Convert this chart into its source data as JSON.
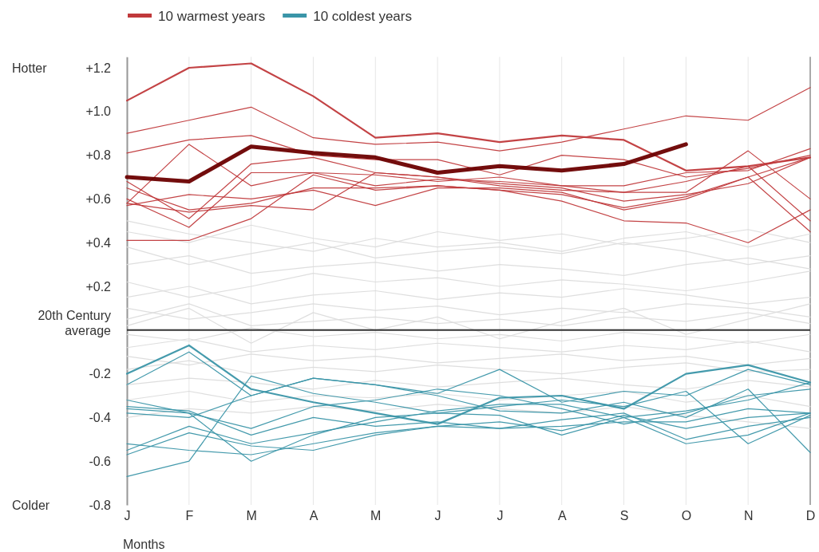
{
  "chart_data": {
    "type": "line",
    "xlabel": "Months",
    "categories": [
      "J",
      "F",
      "M",
      "A",
      "M",
      "J",
      "J",
      "A",
      "S",
      "O",
      "N",
      "D"
    ],
    "ylim": [
      -0.8,
      1.25
    ],
    "yticks": [
      {
        "value": 1.2,
        "label": "+1.2"
      },
      {
        "value": 1.0,
        "label": "+1.0"
      },
      {
        "value": 0.8,
        "label": "+0.8"
      },
      {
        "value": 0.6,
        "label": "+0.6"
      },
      {
        "value": 0.4,
        "label": "+0.4"
      },
      {
        "value": 0.2,
        "label": "+0.2"
      },
      {
        "value": 0,
        "label": null
      },
      -0.2,
      -0.4,
      -0.6,
      -0.8
    ],
    "grid": "x",
    "legend": "top",
    "marker": "none",
    "line_style": "solid",
    "annotations": [
      "Hotter",
      "Colder"
    ],
    "ref_lines": [
      {
        "axis": "y",
        "value": 0,
        "color": "#333333",
        "label": "20th Century average"
      }
    ],
    "series": [
      {
        "color": "#dcdcdc",
        "values": [
          0.45,
          0.4,
          0.48,
          0.42,
          0.38,
          0.45,
          0.41,
          0.44,
          0.39,
          0.42,
          0.46,
          0.4
        ]
      },
      {
        "color": "#dcdcdc",
        "values": [
          0.38,
          0.3,
          0.35,
          0.4,
          0.33,
          0.36,
          0.38,
          0.35,
          0.4,
          0.36,
          0.3,
          0.34
        ]
      },
      {
        "color": "#dcdcdc",
        "values": [
          0.3,
          0.34,
          0.26,
          0.29,
          0.31,
          0.27,
          0.3,
          0.28,
          0.25,
          0.3,
          0.33,
          0.28
        ]
      },
      {
        "color": "#dcdcdc",
        "values": [
          0.22,
          0.15,
          0.2,
          0.26,
          0.22,
          0.24,
          0.2,
          0.23,
          0.21,
          0.18,
          0.22,
          0.27
        ]
      },
      {
        "color": "#dcdcdc",
        "values": [
          0.15,
          0.2,
          0.12,
          0.16,
          0.18,
          0.14,
          0.17,
          0.15,
          0.19,
          0.16,
          0.12,
          0.15
        ]
      },
      {
        "color": "#dcdcdc",
        "values": [
          0.1,
          0.05,
          0.08,
          0.12,
          0.09,
          0.11,
          0.07,
          0.1,
          0.08,
          0.12,
          0.1,
          0.06
        ]
      },
      {
        "color": "#dcdcdc",
        "values": [
          0.05,
          0.12,
          0.02,
          0.04,
          0.06,
          0.03,
          0.05,
          0.02,
          0.06,
          0.04,
          0.08,
          0.03
        ]
      },
      {
        "color": "#dcdcdc",
        "values": [
          -0.02,
          -0.05,
          0.01,
          -0.03,
          -0.01,
          -0.04,
          -0.02,
          -0.05,
          -0.01,
          -0.03,
          -0.06,
          -0.02
        ]
      },
      {
        "color": "#dcdcdc",
        "values": [
          -0.08,
          -0.04,
          -0.1,
          -0.07,
          -0.09,
          -0.06,
          -0.08,
          -0.1,
          -0.07,
          -0.09,
          -0.05,
          -0.1
        ]
      },
      {
        "color": "#dcdcdc",
        "values": [
          -0.12,
          -0.16,
          -0.11,
          -0.14,
          -0.12,
          -0.15,
          -0.13,
          -0.11,
          -0.14,
          -0.12,
          -0.16,
          -0.13
        ]
      },
      {
        "color": "#dcdcdc",
        "values": [
          -0.18,
          -0.14,
          -0.2,
          -0.17,
          -0.19,
          -0.16,
          -0.18,
          -0.2,
          -0.17,
          -0.15,
          -0.19,
          -0.18
        ]
      },
      {
        "color": "#dcdcdc",
        "values": [
          -0.25,
          -0.22,
          -0.24,
          -0.27,
          -0.23,
          -0.26,
          -0.24,
          -0.22,
          -0.25,
          -0.27,
          -0.23,
          -0.26
        ]
      },
      {
        "color": "#dcdcdc",
        "values": [
          -0.32,
          -0.28,
          -0.33,
          -0.3,
          -0.31,
          -0.29,
          -0.32,
          -0.3,
          -0.28,
          -0.33,
          -0.3,
          -0.35
        ]
      },
      {
        "color": "#dcdcdc",
        "values": [
          -0.4,
          -0.36,
          -0.38,
          -0.35,
          -0.37,
          -0.34,
          -0.36,
          -0.38,
          -0.35,
          -0.39,
          -0.42,
          -0.45
        ]
      },
      {
        "color": "#dcdcdc",
        "values": [
          0.5,
          0.44,
          0.4,
          0.36,
          0.42,
          0.38,
          0.4,
          0.36,
          0.42,
          0.45,
          0.38,
          0.44
        ]
      },
      {
        "color": "#dcdcdc",
        "values": [
          0.02,
          0.1,
          -0.06,
          0.08,
          0.0,
          0.06,
          -0.04,
          0.04,
          0.1,
          -0.02,
          0.05,
          0.12
        ]
      },
      {
        "name": "10 warmest years",
        "color": "#c0393b",
        "values": [
          1.05,
          1.2,
          1.22,
          1.07,
          0.88,
          0.9,
          0.86,
          0.89,
          0.87,
          0.73,
          0.75,
          0.79
        ]
      },
      {
        "color": "#c0393b",
        "values": [
          0.9,
          0.96,
          1.02,
          0.88,
          0.85,
          0.86,
          0.82,
          0.86,
          0.92,
          0.98,
          0.96,
          1.11
        ]
      },
      {
        "color": "#c0393b",
        "values": [
          0.81,
          0.87,
          0.89,
          0.8,
          0.78,
          0.78,
          0.71,
          0.8,
          0.78,
          0.7,
          0.74,
          0.8
        ]
      },
      {
        "color": "#c0393b",
        "values": [
          0.58,
          0.85,
          0.66,
          0.72,
          0.71,
          0.68,
          0.7,
          0.66,
          0.63,
          0.63,
          0.82,
          0.6
        ]
      },
      {
        "color": "#c0393b",
        "values": [
          0.68,
          0.51,
          0.76,
          0.79,
          0.72,
          0.7,
          0.66,
          0.64,
          0.63,
          0.68,
          0.75,
          0.5
        ]
      },
      {
        "color": "#c0393b",
        "values": [
          0.6,
          0.47,
          0.72,
          0.72,
          0.66,
          0.69,
          0.68,
          0.66,
          0.66,
          0.72,
          0.73,
          0.83
        ]
      },
      {
        "color": "#c0393b",
        "values": [
          0.57,
          0.62,
          0.6,
          0.64,
          0.57,
          0.65,
          0.65,
          0.63,
          0.55,
          0.6,
          0.7,
          0.45
        ]
      },
      {
        "color": "#c0393b",
        "values": [
          0.58,
          0.54,
          0.57,
          0.55,
          0.72,
          0.7,
          0.67,
          0.65,
          0.59,
          0.62,
          0.67,
          0.79
        ]
      },
      {
        "color": "#c0393b",
        "values": [
          0.41,
          0.41,
          0.51,
          0.71,
          0.64,
          0.66,
          0.64,
          0.59,
          0.5,
          0.49,
          0.4,
          0.55
        ]
      },
      {
        "color": "#c0393b",
        "values": [
          0.65,
          0.55,
          0.58,
          0.65,
          0.65,
          0.66,
          0.64,
          0.62,
          0.56,
          0.61,
          0.7,
          0.79
        ]
      },
      {
        "name": "10 coldest years",
        "color": "#3a95a8",
        "values": [
          -0.2,
          -0.07,
          -0.27,
          -0.33,
          -0.38,
          -0.43,
          -0.31,
          -0.3,
          -0.36,
          -0.2,
          -0.16,
          -0.24
        ]
      },
      {
        "color": "#3a95a8",
        "values": [
          -0.25,
          -0.1,
          -0.3,
          -0.22,
          -0.25,
          -0.29,
          -0.18,
          -0.33,
          -0.28,
          -0.3,
          -0.18,
          -0.25
        ]
      },
      {
        "color": "#3a95a8",
        "values": [
          -0.36,
          -0.38,
          -0.6,
          -0.48,
          -0.4,
          -0.38,
          -0.39,
          -0.48,
          -0.4,
          -0.52,
          -0.48,
          -0.38
        ]
      },
      {
        "color": "#3a95a8",
        "values": [
          -0.35,
          -0.37,
          -0.48,
          -0.4,
          -0.44,
          -0.42,
          -0.45,
          -0.41,
          -0.38,
          -0.5,
          -0.44,
          -0.4
        ]
      },
      {
        "color": "#3a95a8",
        "values": [
          -0.55,
          -0.44,
          -0.52,
          -0.47,
          -0.42,
          -0.37,
          -0.34,
          -0.34,
          -0.4,
          -0.37,
          -0.32,
          -0.24
        ]
      },
      {
        "color": "#3a95a8",
        "values": [
          -0.52,
          -0.55,
          -0.57,
          -0.52,
          -0.47,
          -0.44,
          -0.45,
          -0.44,
          -0.42,
          -0.42,
          -0.36,
          -0.38
        ]
      },
      {
        "color": "#3a95a8",
        "values": [
          -0.67,
          -0.6,
          -0.21,
          -0.29,
          -0.33,
          -0.38,
          -0.35,
          -0.32,
          -0.35,
          -0.28,
          -0.52,
          -0.39
        ]
      },
      {
        "color": "#3a95a8",
        "values": [
          -0.38,
          -0.4,
          -0.3,
          -0.22,
          -0.25,
          -0.3,
          -0.37,
          -0.38,
          -0.33,
          -0.4,
          -0.27,
          -0.56
        ]
      },
      {
        "color": "#3a95a8",
        "values": [
          -0.32,
          -0.38,
          -0.45,
          -0.35,
          -0.32,
          -0.27,
          -0.3,
          -0.36,
          -0.43,
          -0.38,
          -0.3,
          -0.27
        ]
      },
      {
        "color": "#3a95a8",
        "values": [
          -0.57,
          -0.47,
          -0.53,
          -0.55,
          -0.48,
          -0.44,
          -0.42,
          -0.46,
          -0.39,
          -0.45,
          -0.4,
          -0.38
        ]
      },
      {
        "color": "#6b0000",
        "values": [
          0.7,
          0.68,
          0.84,
          0.81,
          0.79,
          0.72,
          0.75,
          0.73,
          0.76,
          0.85,
          null,
          null
        ]
      }
    ]
  }
}
